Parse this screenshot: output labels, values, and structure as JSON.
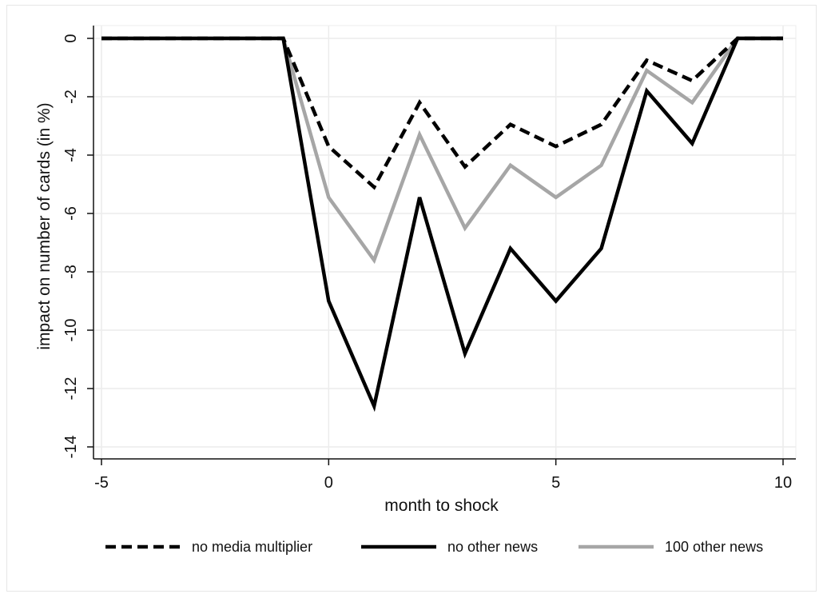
{
  "chart_data": {
    "type": "line",
    "xlabel": "month to shock",
    "ylabel": "impact on number of cards (in %)",
    "xlim": [
      -5,
      10
    ],
    "ylim": [
      -14,
      0
    ],
    "xticks": [
      -5,
      0,
      5,
      10
    ],
    "yticks": [
      0,
      -2,
      -4,
      -6,
      -8,
      -10,
      -12,
      -14
    ],
    "grid": true,
    "legend_position": "bottom",
    "x": [
      -5,
      -4,
      -3,
      -2,
      -1,
      0,
      1,
      2,
      3,
      4,
      5,
      6,
      7,
      8,
      9,
      10
    ],
    "series": [
      {
        "name": "no media multiplier",
        "style": "dashed",
        "color": "#000000",
        "values": [
          0,
          0,
          0,
          0,
          0,
          -3.7,
          -5.1,
          -2.2,
          -4.4,
          -2.95,
          -3.7,
          -2.95,
          -0.75,
          -1.45,
          0,
          0
        ]
      },
      {
        "name": "no other news",
        "style": "solid",
        "color": "#000000",
        "values": [
          0,
          0,
          0,
          0,
          0,
          -9.0,
          -12.6,
          -5.45,
          -10.8,
          -7.2,
          -9.0,
          -7.2,
          -1.8,
          -3.6,
          0,
          0
        ]
      },
      {
        "name": "100 other news",
        "style": "solid",
        "color": "#a6a6a6",
        "values": [
          0,
          0,
          0,
          0,
          0,
          -5.45,
          -7.6,
          -3.3,
          -6.5,
          -4.35,
          -5.45,
          -4.35,
          -1.1,
          -2.2,
          0,
          0
        ]
      }
    ]
  }
}
